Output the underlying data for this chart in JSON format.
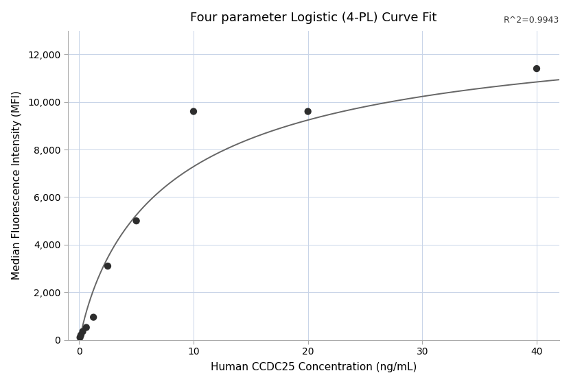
{
  "title": "Four parameter Logistic (4-PL) Curve Fit",
  "xlabel": "Human CCDC25 Concentration (ng/mL)",
  "ylabel": "Median Fluorescence Intensity (MFI)",
  "scatter_x": [
    0.078,
    0.156,
    0.313,
    0.625,
    1.25,
    2.5,
    5.0,
    10.0,
    20.0,
    40.0
  ],
  "scatter_y": [
    100,
    200,
    350,
    520,
    950,
    3100,
    5000,
    9600,
    9600,
    11400
  ],
  "xlim": [
    -1,
    42
  ],
  "ylim": [
    0,
    13000
  ],
  "yticks": [
    0,
    2000,
    4000,
    6000,
    8000,
    10000,
    12000
  ],
  "xticks": [
    0,
    10,
    20,
    30,
    40
  ],
  "r_squared": "R^2=0.9943",
  "4pl_A": -200,
  "4pl_B": 0.85,
  "4pl_C": 8.5,
  "4pl_D": 13800,
  "dot_color": "#2d2d2d",
  "dot_size": 55,
  "line_color": "#666666",
  "line_width": 1.4,
  "grid_color": "#c8d4e8",
  "background_color": "#ffffff",
  "title_fontsize": 13,
  "label_fontsize": 11,
  "tick_fontsize": 10,
  "rsq_fontsize": 9
}
